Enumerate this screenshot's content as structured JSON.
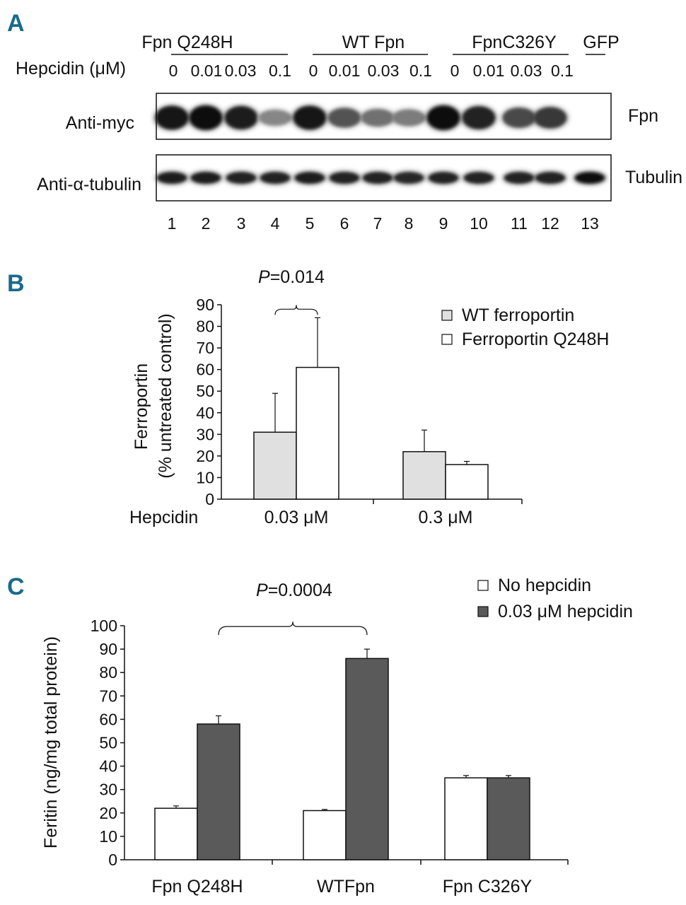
{
  "panel_a": {
    "letter": "A",
    "hepcidin_label": "Hepcidin (μM)",
    "groups": [
      {
        "name": "Fpn Q248H",
        "doses": [
          "0",
          "0.01",
          "0.03",
          "0.1"
        ]
      },
      {
        "name": "WT Fpn",
        "doses": [
          "0",
          "0.01",
          "0.03",
          "0.1"
        ]
      },
      {
        "name": "FpnC326Y",
        "doses": [
          "0",
          "0.01",
          "0.03",
          "0.1"
        ]
      },
      {
        "name": "GFP",
        "doses": []
      }
    ],
    "blots": [
      {
        "left_label": "Anti-myc",
        "right_label": "Fpn",
        "band_intensity": [
          0.95,
          1.0,
          0.92,
          0.45,
          0.95,
          0.68,
          0.55,
          0.5,
          1.0,
          0.9,
          0.72,
          0.8,
          0
        ]
      },
      {
        "left_label": "Anti-α-tubulin",
        "right_label": "Tubulin",
        "band_intensity": [
          0.92,
          0.92,
          0.9,
          0.9,
          0.92,
          0.9,
          0.9,
          0.88,
          0.9,
          0.9,
          0.9,
          0.9,
          0.98
        ]
      }
    ],
    "lanes": [
      "1",
      "2",
      "3",
      "4",
      "5",
      "6",
      "7",
      "8",
      "9",
      "10",
      "11",
      "12",
      "13"
    ]
  },
  "chart_data": [
    {
      "panel": "B",
      "type": "bar",
      "title": "",
      "xlabel": "Hepcidin",
      "ylabel_lines": [
        "Ferroportin",
        "(% untreated control)"
      ],
      "categories": [
        "0.03 μM",
        "0.3 μM"
      ],
      "series": [
        {
          "name": "WT ferroportin",
          "color": "#e0e0e0",
          "values": [
            31,
            22
          ],
          "errors": [
            18,
            10
          ]
        },
        {
          "name": "Ferroportin Q248H",
          "color": "#ffffff",
          "values": [
            61,
            16
          ],
          "errors": [
            23,
            1.5
          ]
        }
      ],
      "ylim": [
        0,
        90
      ],
      "yticks": [
        0,
        10,
        20,
        30,
        40,
        50,
        60,
        70,
        80,
        90
      ],
      "legend_position": "top-right",
      "annotation": {
        "p_label": "P",
        "p_value": "=0.014",
        "between_category": 0
      }
    },
    {
      "panel": "C",
      "type": "bar",
      "title": "",
      "xlabel": "",
      "ylabel": "Feritin (ng/mg total protein)",
      "categories": [
        "Fpn Q248H",
        "WTFpn",
        "Fpn C326Y"
      ],
      "series": [
        {
          "name": "No hepcidin",
          "color": "#ffffff",
          "values": [
            22,
            21,
            35
          ],
          "errors": [
            1,
            0.5,
            1
          ]
        },
        {
          "name": "0.03 μM hepcidin",
          "color": "#5a5a5a",
          "values": [
            58,
            86,
            35
          ],
          "errors": [
            3.5,
            4,
            1
          ]
        }
      ],
      "ylim": [
        0,
        100
      ],
      "yticks": [
        0,
        10,
        20,
        30,
        40,
        50,
        60,
        70,
        80,
        90,
        100
      ],
      "legend_position": "top-right",
      "annotation": {
        "p_label": "P",
        "p_value": "=0.0004",
        "between_categories": [
          0,
          1
        ]
      }
    }
  ]
}
